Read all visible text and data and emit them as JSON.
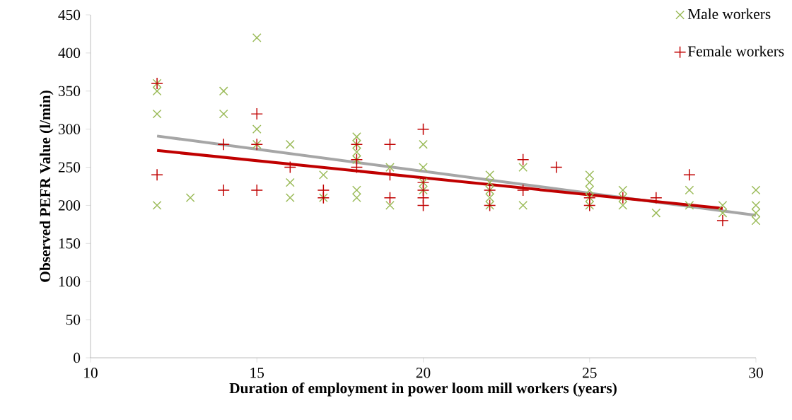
{
  "chart_data": {
    "type": "scatter",
    "xlabel": "Duration of employment in power loom mill workers (years)",
    "ylabel": "Observed PEFR Value (l/min)",
    "xlim": [
      10,
      30
    ],
    "xticks": [
      10,
      15,
      20,
      25,
      30
    ],
    "ylim": [
      0,
      450
    ],
    "yticks": [
      0,
      50,
      100,
      150,
      200,
      250,
      300,
      350,
      400,
      450
    ],
    "grid": false,
    "legend": "top right",
    "series": [
      {
        "name": "Male workers",
        "color": "#9bbb59",
        "marker": "cross",
        "x": [
          12,
          12,
          12,
          12,
          13,
          14,
          14,
          15,
          15,
          15,
          16,
          16,
          16,
          17,
          17,
          18,
          18,
          18,
          18,
          18,
          18,
          19,
          19,
          20,
          20,
          20,
          20,
          22,
          22,
          22,
          22,
          22,
          23,
          23,
          25,
          25,
          25,
          25,
          25,
          26,
          26,
          26,
          27,
          28,
          28,
          29,
          29,
          30,
          30,
          30,
          30
        ],
        "values": [
          360,
          350,
          320,
          200,
          210,
          350,
          320,
          420,
          300,
          280,
          280,
          230,
          210,
          240,
          210,
          290,
          280,
          270,
          260,
          220,
          210,
          250,
          200,
          280,
          250,
          230,
          220,
          240,
          230,
          220,
          210,
          200,
          250,
          200,
          240,
          230,
          220,
          210,
          200,
          220,
          210,
          200,
          190,
          220,
          200,
          200,
          190,
          220,
          200,
          190,
          180
        ]
      },
      {
        "name": "Female workers",
        "color": "#c00000",
        "marker": "plus",
        "x": [
          12,
          12,
          14,
          14,
          15,
          15,
          15,
          16,
          17,
          17,
          18,
          18,
          18,
          19,
          19,
          19,
          20,
          20,
          20,
          20,
          20,
          22,
          22,
          23,
          23,
          24,
          25,
          25,
          26,
          27,
          28,
          29
        ],
        "values": [
          360,
          240,
          280,
          220,
          320,
          280,
          220,
          250,
          220,
          210,
          280,
          260,
          250,
          280,
          240,
          210,
          300,
          230,
          220,
          210,
          200,
          220,
          200,
          260,
          220,
          250,
          210,
          200,
          210,
          210,
          240,
          180
        ]
      },
      {
        "type": "line",
        "color": "#a6a6a6",
        "x": [
          12,
          30
        ],
        "values": [
          291,
          187
        ]
      },
      {
        "type": "line",
        "color": "#c00000",
        "x": [
          12,
          29
        ],
        "values": [
          272,
          196
        ]
      }
    ]
  }
}
